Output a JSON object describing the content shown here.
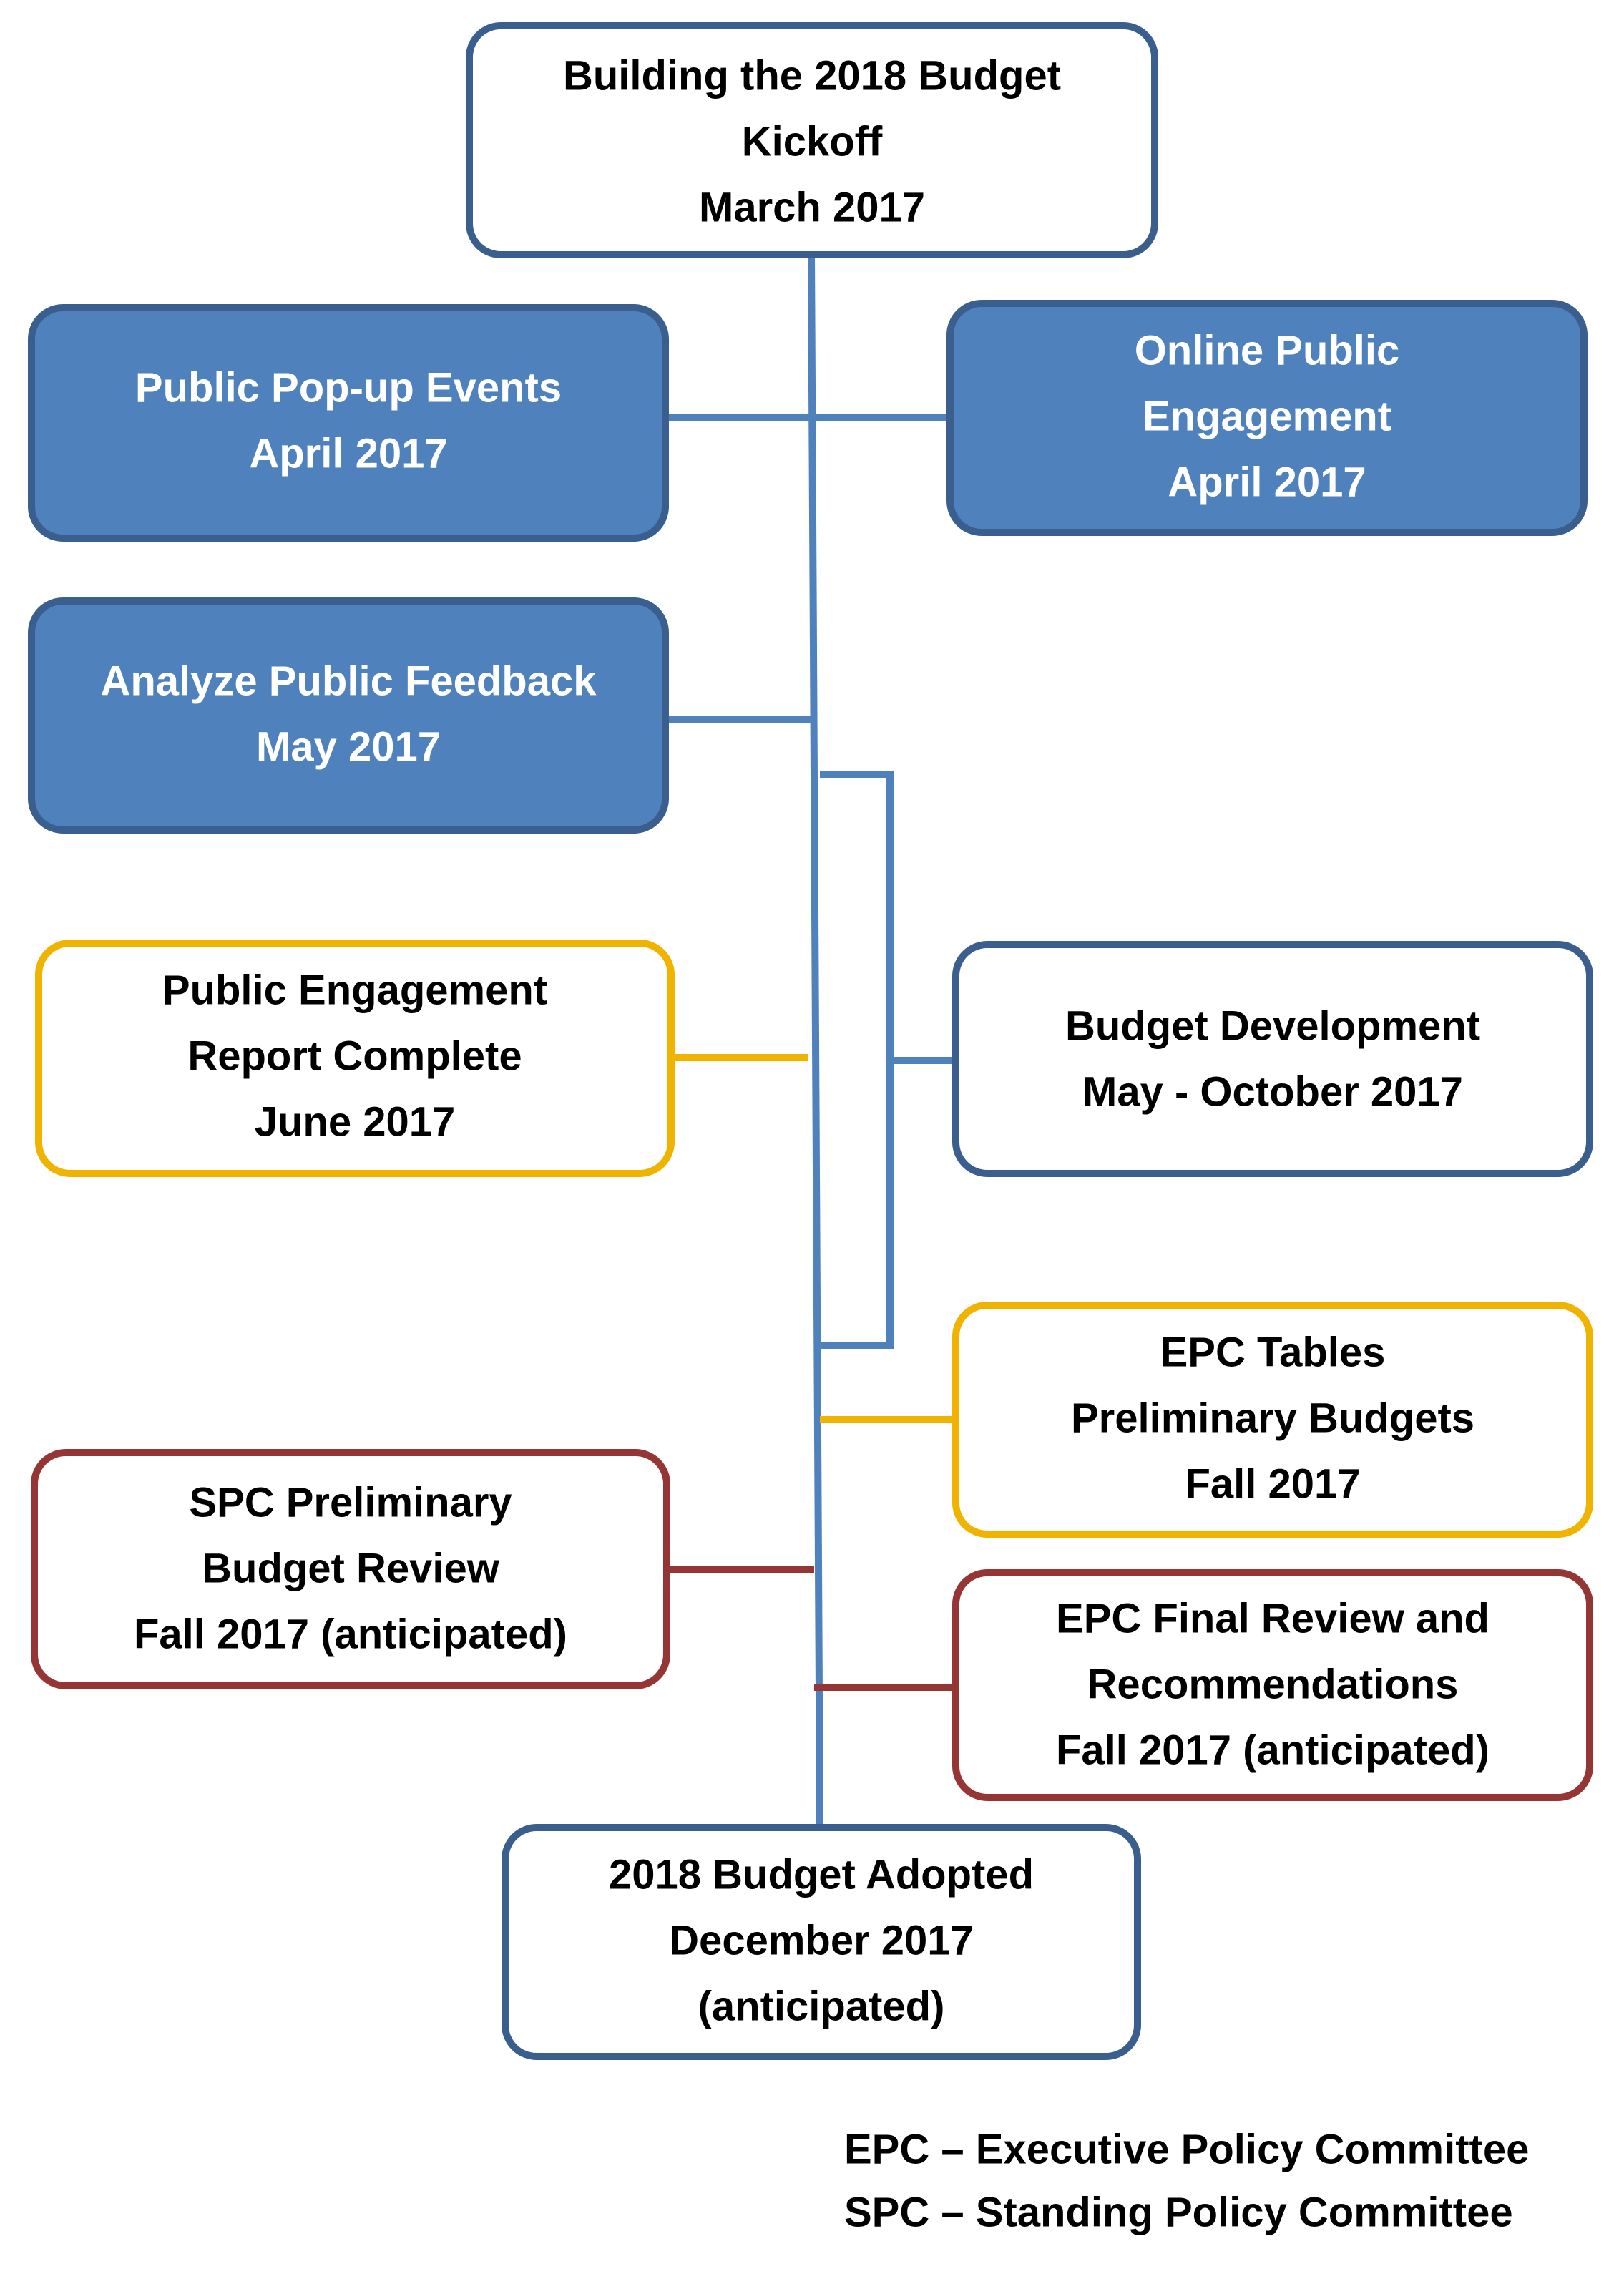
{
  "nodes": [
    {
      "lines": [
        "Building the 2018 Budget",
        "Kickoff",
        "March 2017"
      ]
    },
    {
      "lines": [
        "Public Pop-up Events",
        "April 2017"
      ]
    },
    {
      "lines": [
        "Online Public",
        "Engagement",
        "April 2017"
      ]
    },
    {
      "lines": [
        "Analyze Public Feedback",
        "May 2017"
      ]
    },
    {
      "lines": [
        "Public Engagement",
        "Report Complete",
        "June 2017"
      ]
    },
    {
      "lines": [
        "Budget Development",
        "May - October 2017"
      ]
    },
    {
      "lines": [
        "EPC Tables",
        "Preliminary Budgets",
        "Fall 2017"
      ]
    },
    {
      "lines": [
        "SPC Preliminary",
        "Budget Review",
        "Fall 2017 (anticipated)"
      ]
    },
    {
      "lines": [
        "EPC Final Review and",
        "Recommendations",
        "Fall 2017 (anticipated)"
      ]
    },
    {
      "lines": [
        "2018 Budget Adopted",
        "December 2017",
        "(anticipated)"
      ]
    }
  ],
  "legend": [
    "EPC – Executive Policy Committee",
    "SPC – Standing Policy Committee"
  ]
}
